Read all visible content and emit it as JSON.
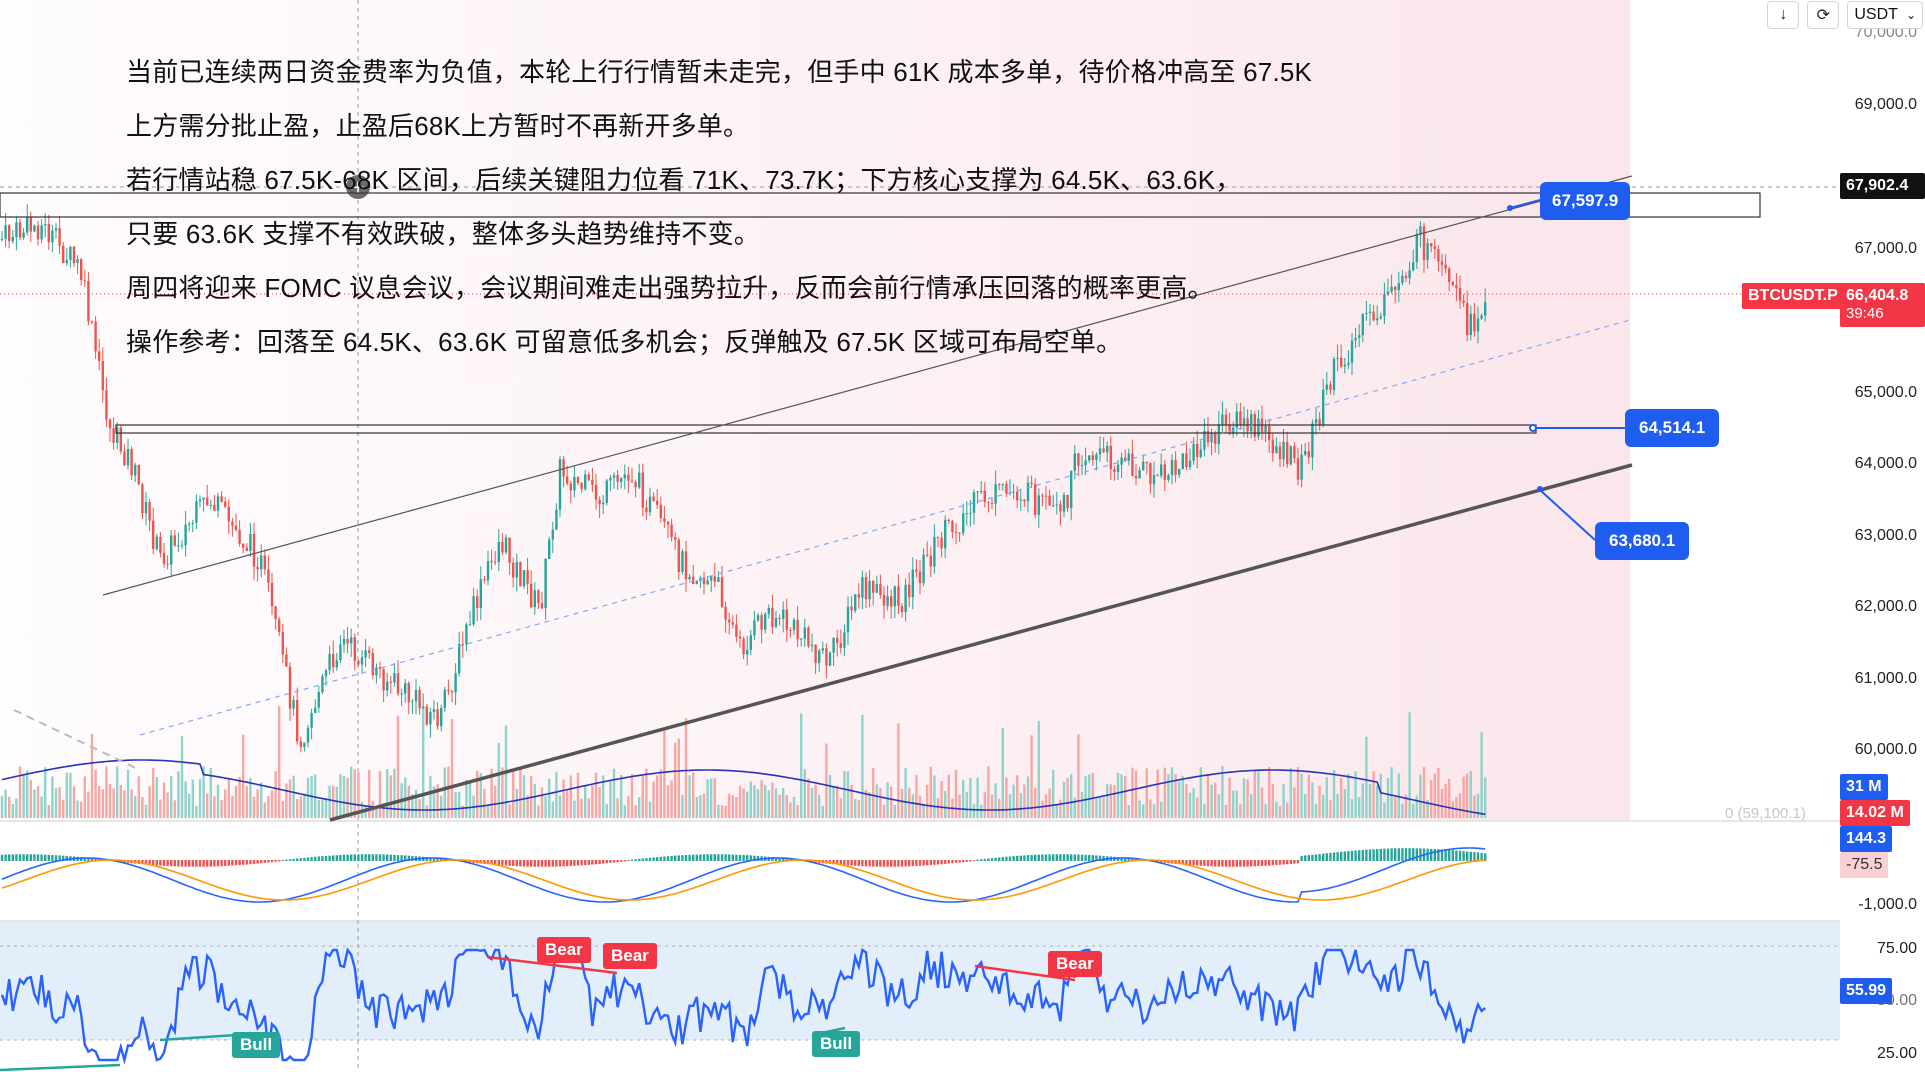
{
  "toolbar": {
    "download_icon": "arrow-down-icon",
    "refresh_icon": "refresh-icon",
    "currency": "USDT",
    "currency_dropdown_icon": "chevron-down-icon"
  },
  "notes": [
    "当前已连续两日资金费率为负值，本轮上行行情暂未走完，但手中 61K 成本多单，待价格冲高至 67.5K",
    "上方需分批止盈，止盈后68K上方暂时不再新开多单。",
    "若行情站稳 67.5K-68K 区间，后续关键阻力位看 71K、73.7K；下方核心支撑为 64.5K、63.6K，",
    "只要 63.6K 支撑不有效跌破，整体多头趋势维持不变。",
    "周四将迎来 FOMC 议息会议，会议期间难走出强势拉升，反而会前行情承压回落的概率更高。",
    "操作参考：回落至 64.5K、63.6K 可留意低多机会；反弹触及 67.5K 区域可布局空单。"
  ],
  "price_axis": {
    "ticks": [
      "70,000.0",
      "69,000.0",
      "67,000.0",
      "65,000.0",
      "64,000.0",
      "63,000.0",
      "62,000.0",
      "61,000.0",
      "60,000.0"
    ],
    "crosshair_price": "67,902.4",
    "symbol": "BTCUSDT.P",
    "last_price": "66,404.8",
    "countdown": "39:46",
    "faint_label": "0 (59,100.1)"
  },
  "callouts": {
    "upper": "67,597.9",
    "middle": "64,514.1",
    "lower": "63,680.1"
  },
  "volume_axis": {
    "value1": "31 M",
    "value2": "14.02 M"
  },
  "macd_axis": {
    "value1": "144.3",
    "value2": "-75.5",
    "tick": "-1,000.0"
  },
  "rsi_axis": {
    "tick_high": "75.00",
    "value": "55.99",
    "tick_mid": "50.00",
    "tick_low": "25.00"
  },
  "divergence_labels": {
    "bear1": "Bear",
    "bear2": "Bear",
    "bear3": "Bear",
    "bull1": "Bull",
    "bull2": "Bull"
  },
  "colors": {
    "up": "#26a69a",
    "down": "#ef5350",
    "accent_blue": "#1f5cf0",
    "symbol_red": "#f23645",
    "rsi_line": "#2962ff",
    "macd_orange": "#ff9800"
  },
  "chart_data": {
    "type": "candlestick",
    "symbol": "BTCUSDT.P",
    "last_price": 66404.8,
    "ylim": [
      59100,
      70500
    ],
    "levels": [
      67902.4,
      67597.9,
      64514.1,
      63680.1
    ],
    "rsi_ticks": [
      75,
      50,
      25
    ],
    "rsi_last": 55.99
  }
}
